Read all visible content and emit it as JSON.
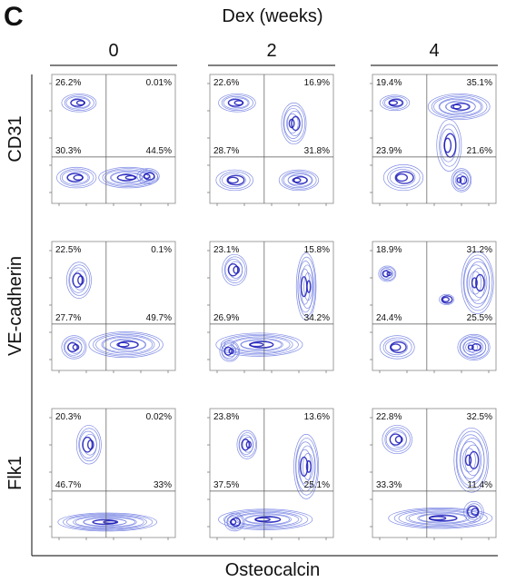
{
  "panel_label": "C",
  "header": {
    "title": "Dex (weeks)",
    "columns": [
      "0",
      "2",
      "4"
    ]
  },
  "rows": [
    {
      "label": "CD31",
      "panels": [
        [
          "26.2%",
          "0.01%",
          "30.3%",
          "44.5%"
        ],
        [
          "22.6%",
          "16.9%",
          "28.7%",
          "31.8%"
        ],
        [
          "19.4%",
          "35.1%",
          "23.9%",
          "21.6%"
        ]
      ]
    },
    {
      "label": "VE-cadherin",
      "panels": [
        [
          "22.5%",
          "0.1%",
          "27.7%",
          "49.7%"
        ],
        [
          "23.1%",
          "15.8%",
          "26.9%",
          "34.2%"
        ],
        [
          "18.9%",
          "31.2%",
          "24.4%",
          "25.5%"
        ]
      ]
    },
    {
      "label": "Flk1",
      "panels": [
        [
          "20.3%",
          "0.02%",
          "46.7%",
          "33%"
        ],
        [
          "23.8%",
          "13.6%",
          "37.5%",
          "25.1%"
        ],
        [
          "22.8%",
          "32.5%",
          "33.3%",
          "11.4%"
        ]
      ]
    }
  ],
  "x_axis_label": "Osteocalcin"
}
